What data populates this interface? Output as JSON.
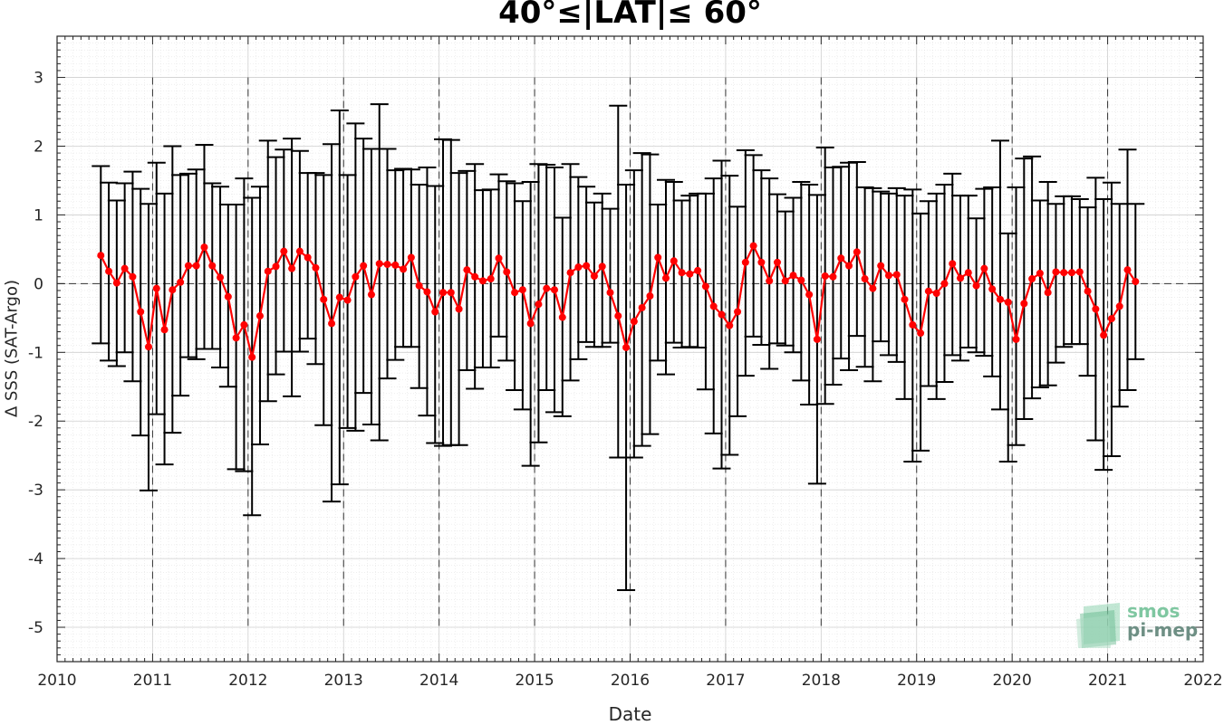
{
  "chart_data": {
    "type": "line",
    "title": "40°≤|LAT|≤ 60°",
    "xlabel": "Date",
    "ylabel": "Δ SSS (SAT-Argo)",
    "xlim": [
      2010,
      2022
    ],
    "ylim": [
      -5.5,
      3.6
    ],
    "xticks": [
      "2010",
      "2011",
      "2012",
      "2013",
      "2014",
      "2015",
      "2016",
      "2017",
      "2018",
      "2019",
      "2020",
      "2021",
      "2022"
    ],
    "yticks": [
      "3",
      "2",
      "1",
      "0",
      "-1",
      "-2",
      "-3",
      "-4",
      "-5"
    ],
    "ytick_values": [
      3,
      2,
      1,
      0,
      -1,
      -2,
      -3,
      -4,
      -5
    ],
    "grid": "major and minor, dotted",
    "vertical_dashed_lines": [
      2011,
      2012,
      2013,
      2014,
      2015,
      2016,
      2017,
      2018,
      2019,
      2020,
      2021
    ],
    "reference_line": 0,
    "series": [
      {
        "color": "#ff0000",
        "errorbar_color": "#000000",
        "start": 2010.458,
        "step_months": 1,
        "values": [
          0.41,
          0.18,
          0.01,
          0.22,
          0.1,
          -0.41,
          -0.92,
          -0.07,
          -0.67,
          -0.09,
          0.02,
          0.26,
          0.26,
          0.53,
          0.26,
          0.09,
          -0.19,
          -0.79,
          -0.6,
          -1.07,
          -0.47,
          0.18,
          0.25,
          0.47,
          0.22,
          0.47,
          0.38,
          0.23,
          -0.23,
          -0.58,
          -0.2,
          -0.24,
          0.1,
          0.26,
          -0.16,
          0.29,
          0.28,
          0.27,
          0.21,
          0.38,
          -0.03,
          -0.12,
          -0.41,
          -0.13,
          -0.13,
          -0.37,
          0.2,
          0.1,
          0.04,
          0.07,
          0.37,
          0.17,
          -0.13,
          -0.09,
          -0.58,
          -0.3,
          -0.07,
          -0.09,
          -0.49,
          0.16,
          0.24,
          0.26,
          0.11,
          0.25,
          -0.13,
          -0.47,
          -0.93,
          -0.55,
          -0.35,
          -0.18,
          0.38,
          0.08,
          0.33,
          0.16,
          0.14,
          0.19,
          -0.04,
          -0.33,
          -0.45,
          -0.61,
          -0.41,
          0.31,
          0.55,
          0.31,
          0.04,
          0.31,
          0.04,
          0.12,
          0.05,
          -0.16,
          -0.81,
          0.11,
          0.1,
          0.37,
          0.26,
          0.46,
          0.07,
          -0.07,
          0.26,
          0.12,
          0.13,
          -0.23,
          -0.6,
          -0.72,
          -0.11,
          -0.14,
          0.0,
          0.29,
          0.08,
          0.16,
          -0.03,
          0.22,
          -0.08,
          -0.23,
          -0.27,
          -0.81,
          -0.29,
          0.07,
          0.15,
          -0.13,
          0.17,
          0.16,
          0.16,
          0.17,
          -0.11,
          -0.37,
          -0.75,
          -0.51,
          -0.33,
          0.2,
          0.03
        ],
        "upper": [
          1.71,
          1.47,
          1.21,
          1.46,
          1.63,
          1.38,
          1.16,
          1.76,
          1.31,
          2.0,
          1.58,
          1.6,
          1.66,
          2.02,
          1.46,
          1.41,
          1.15,
          1.15,
          1.53,
          1.25,
          1.41,
          2.08,
          1.84,
          1.95,
          2.11,
          1.93,
          1.61,
          1.61,
          1.58,
          2.03,
          2.52,
          1.58,
          2.33,
          2.11,
          1.96,
          2.61,
          1.96,
          1.65,
          1.67,
          1.66,
          1.44,
          1.69,
          1.42,
          2.1,
          2.09,
          1.61,
          1.64,
          1.74,
          1.36,
          1.37,
          1.59,
          1.49,
          1.46,
          1.2,
          1.48,
          1.74,
          1.73,
          1.69,
          0.96,
          1.74,
          1.55,
          1.41,
          1.18,
          1.31,
          1.09,
          2.59,
          1.44,
          1.65,
          1.9,
          1.88,
          1.15,
          1.51,
          1.48,
          1.21,
          1.28,
          1.31,
          1.31,
          1.53,
          1.79,
          1.57,
          1.12,
          1.94,
          1.87,
          1.65,
          1.53,
          1.3,
          1.05,
          1.25,
          1.48,
          1.44,
          1.29,
          1.98,
          1.69,
          1.7,
          1.76,
          1.77,
          1.4,
          1.39,
          1.34,
          1.31,
          1.39,
          1.28,
          1.37,
          1.02,
          1.2,
          1.31,
          1.44,
          1.6,
          1.28,
          1.28,
          0.95,
          1.38,
          1.4,
          2.08,
          0.73,
          1.4,
          1.82,
          1.85,
          1.21,
          1.48,
          1.16,
          1.27,
          1.27,
          1.23,
          1.11,
          1.54,
          1.23,
          1.47,
          1.16,
          1.95,
          1.16
        ],
        "lower": [
          -0.87,
          -1.12,
          -1.2,
          -1.0,
          -1.42,
          -2.21,
          -3.01,
          -1.9,
          -2.63,
          -2.17,
          -1.63,
          -1.07,
          -1.1,
          -0.95,
          -0.95,
          -1.22,
          -1.5,
          -2.7,
          -2.73,
          -3.37,
          -2.34,
          -1.71,
          -1.32,
          -0.99,
          -1.64,
          -0.99,
          -0.8,
          -1.17,
          -2.06,
          -3.17,
          -2.92,
          -2.1,
          -2.14,
          -1.59,
          -2.05,
          -2.28,
          -1.38,
          -1.11,
          -0.92,
          -0.92,
          -1.52,
          -1.92,
          -2.32,
          -2.36,
          -2.35,
          -2.35,
          -1.26,
          -1.53,
          -1.22,
          -1.22,
          -0.77,
          -1.12,
          -1.55,
          -1.83,
          -2.65,
          -2.31,
          -1.55,
          -1.87,
          -1.93,
          -1.41,
          -1.1,
          -0.85,
          -0.92,
          -0.92,
          -0.86,
          -2.53,
          -4.46,
          -2.53,
          -2.36,
          -2.19,
          -1.12,
          -1.32,
          -0.86,
          -0.93,
          -0.92,
          -0.93,
          -1.54,
          -2.18,
          -2.69,
          -2.49,
          -1.93,
          -1.34,
          -0.77,
          -0.89,
          -1.24,
          -0.87,
          -0.9,
          -1.0,
          -1.41,
          -1.76,
          -2.91,
          -1.75,
          -1.47,
          -1.09,
          -1.26,
          -0.76,
          -1.21,
          -1.42,
          -0.84,
          -1.04,
          -1.14,
          -1.68,
          -2.59,
          -2.43,
          -1.49,
          -1.68,
          -1.43,
          -1.04,
          -1.12,
          -0.93,
          -1.0,
          -1.05,
          -1.35,
          -1.83,
          -2.59,
          -2.35,
          -1.97,
          -1.67,
          -1.51,
          -1.48,
          -1.15,
          -0.92,
          -0.88,
          -0.88,
          -1.34,
          -2.28,
          -2.71,
          -2.51,
          -1.79,
          -1.55,
          -1.1
        ]
      }
    ]
  },
  "logo": {
    "line1": "smos",
    "line2": "pi-mep"
  }
}
